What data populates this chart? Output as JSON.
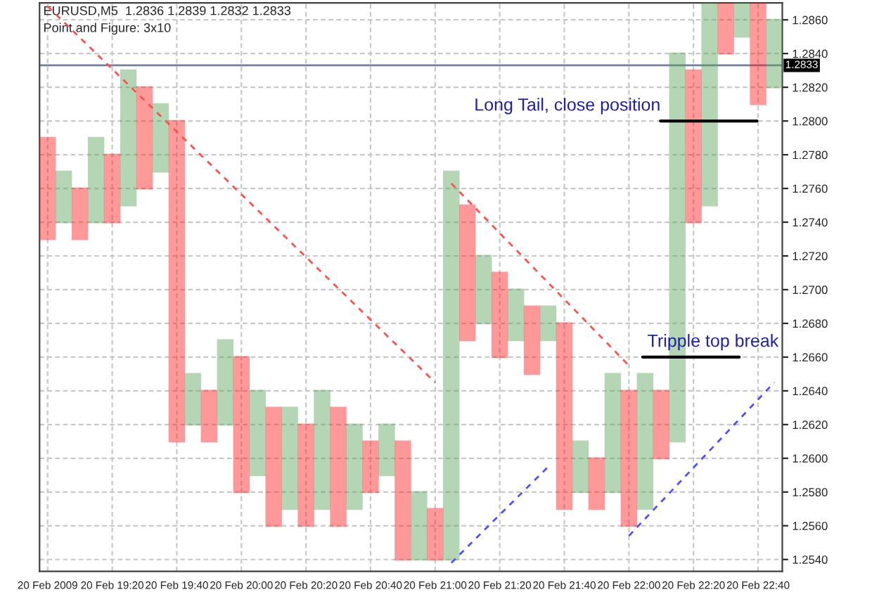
{
  "chart_data": {
    "type": "bar",
    "title": "EURUSD,M5  1.2836 1.2839 1.2832 1.2833",
    "subtitle": "Point and Figure: 3x10",
    "categories": [
      "20 Feb 2009",
      null,
      null,
      null,
      "20 Feb 19:20",
      null,
      null,
      null,
      "20 Feb 19:40",
      null,
      null,
      null,
      "20 Feb 20:00",
      null,
      null,
      null,
      "20 Feb 20:20",
      null,
      null,
      null,
      "20 Feb 20:40",
      null,
      null,
      null,
      "20 Feb 21:00",
      null,
      null,
      null,
      "20 Feb 21:20",
      null,
      null,
      null,
      "20 Feb 21:40",
      null,
      null,
      null,
      "20 Feb 22:00",
      null,
      null,
      null,
      "20 Feb 22:20",
      null,
      null,
      null,
      "20 Feb 22:40",
      null
    ],
    "series": [
      {
        "base": [
          1.273,
          1.274,
          1.273,
          1.274,
          1.274,
          1.275,
          1.276,
          1.277,
          1.261,
          1.262,
          1.261,
          1.262,
          1.258,
          1.259,
          1.256,
          1.257,
          1.256,
          1.257,
          1.256,
          1.257,
          1.258,
          1.259,
          1.254,
          1.254,
          1.254,
          1.254,
          1.267,
          1.268,
          1.266,
          1.267,
          1.265,
          1.267,
          1.257,
          1.258,
          1.257,
          1.258,
          1.256,
          1.257,
          1.26,
          1.261,
          1.274,
          1.275,
          1.284,
          1.285,
          1.281,
          1.282
        ],
        "values": [
          0.006,
          0.003,
          0.003,
          0.005,
          0.004,
          0.008,
          0.006,
          0.004,
          0.019,
          0.003,
          0.003,
          0.005,
          0.008,
          0.005,
          0.007,
          0.006,
          0.006,
          0.007,
          0.007,
          0.005,
          0.003,
          0.003,
          0.007,
          0.004,
          0.003,
          0.023,
          0.008,
          0.004,
          0.005,
          0.003,
          0.004,
          0.002,
          0.011,
          0.003,
          0.003,
          0.007,
          0.008,
          0.008,
          0.004,
          0.023,
          0.009,
          0.012,
          0.003,
          0.002,
          0.006,
          0.004
        ],
        "colors": [
          "#ff2020",
          "#5aa55a",
          "#ff2020",
          "#5aa55a",
          "#ff2020",
          "#5aa55a",
          "#ff2020",
          "#5aa55a",
          "#ff2020",
          "#5aa55a",
          "#ff2020",
          "#5aa55a",
          "#ff2020",
          "#5aa55a",
          "#ff2020",
          "#5aa55a",
          "#ff2020",
          "#5aa55a",
          "#ff2020",
          "#5aa55a",
          "#ff2020",
          "#5aa55a",
          "#ff2020",
          "#5aa55a",
          "#ff2020",
          "#5aa55a",
          "#ff2020",
          "#5aa55a",
          "#ff2020",
          "#5aa55a",
          "#ff2020",
          "#5aa55a",
          "#ff2020",
          "#5aa55a",
          "#ff2020",
          "#5aa55a",
          "#ff2020",
          "#5aa55a",
          "#ff2020",
          "#5aa55a",
          "#ff2020",
          "#5aa55a",
          "#ff2020",
          "#5aa55a",
          "#ff2020",
          "#5aa55a"
        ]
      },
      {
        "type": "line",
        "values": [
          1.2868,
          null,
          null,
          null,
          null,
          null,
          null,
          null,
          null,
          null,
          null,
          null,
          null,
          null,
          null,
          null,
          null,
          null,
          null,
          null,
          null,
          null,
          null,
          null,
          1.2645,
          null,
          null,
          null,
          null,
          null,
          null,
          null,
          null,
          null,
          null,
          null,
          null,
          null,
          null,
          null,
          null,
          null,
          null,
          null,
          null,
          null
        ],
        "color": "#ff5050",
        "line_style": "dashed"
      },
      {
        "type": "line",
        "values": [
          null,
          null,
          null,
          null,
          null,
          null,
          null,
          null,
          null,
          null,
          null,
          null,
          null,
          null,
          null,
          null,
          null,
          null,
          null,
          null,
          null,
          null,
          null,
          null,
          null,
          1.2763,
          null,
          null,
          null,
          null,
          null,
          null,
          null,
          null,
          null,
          null,
          1.2655,
          null,
          null,
          null,
          null,
          null,
          null,
          null,
          null,
          null
        ],
        "color": "#ff5050",
        "line_style": "dashed"
      },
      {
        "type": "line",
        "values": [
          null,
          null,
          null,
          null,
          null,
          null,
          null,
          null,
          null,
          null,
          null,
          null,
          null,
          null,
          null,
          null,
          null,
          null,
          null,
          null,
          null,
          null,
          null,
          null,
          null,
          1.2538,
          null,
          null,
          null,
          null,
          null,
          1.2595,
          null,
          null,
          null,
          null,
          null,
          null,
          null,
          null,
          null,
          null,
          null,
          null,
          null,
          null
        ],
        "color": "#5050ff",
        "line_style": "dashed"
      },
      {
        "type": "line",
        "values": [
          null,
          null,
          null,
          null,
          null,
          null,
          null,
          null,
          null,
          null,
          null,
          null,
          null,
          null,
          null,
          null,
          null,
          null,
          null,
          null,
          null,
          null,
          null,
          null,
          null,
          null,
          null,
          null,
          null,
          null,
          null,
          null,
          null,
          null,
          null,
          null,
          1.2554,
          null,
          null,
          null,
          null,
          null,
          null,
          null,
          null,
          1.2645
        ],
        "color": "#5050ff",
        "line_style": "dashed"
      }
    ],
    "ylim": [
      1.2533,
      1.287
    ],
    "yticks": [
      {
        "value": 1.254,
        "label": "1.2540"
      },
      {
        "value": 1.256,
        "label": "1.2560"
      },
      {
        "value": 1.258,
        "label": "1.2580"
      },
      {
        "value": 1.26,
        "label": "1.2600"
      },
      {
        "value": 1.262,
        "label": "1.2620"
      },
      {
        "value": 1.264,
        "label": "1.2640"
      },
      {
        "value": 1.266,
        "label": "1.2660"
      },
      {
        "value": 1.268,
        "label": "1.2680"
      },
      {
        "value": 1.27,
        "label": "1.2700"
      },
      {
        "value": 1.272,
        "label": "1.2720"
      },
      {
        "value": 1.274,
        "label": "1.2740"
      },
      {
        "value": 1.276,
        "label": "1.2760"
      },
      {
        "value": 1.278,
        "label": "1.2780"
      },
      {
        "value": 1.28,
        "label": "1.2800"
      },
      {
        "value": 1.282,
        "label": "1.2820"
      },
      {
        "value": 1.284,
        "label": "1.2840"
      },
      {
        "value": 1.286,
        "label": "1.2860"
      }
    ],
    "ref_lines": [
      {
        "axis": "y",
        "value": 1.2833,
        "label": "1.2833",
        "color": "#7080a0"
      },
      {
        "axis": "y",
        "value": 1.28,
        "label": "Long Tail, close position",
        "color": "#000000"
      },
      {
        "axis": "y",
        "value": 1.266,
        "label": "Tripple top break",
        "color": "#000000"
      }
    ],
    "grid": true,
    "legend": false
  }
}
